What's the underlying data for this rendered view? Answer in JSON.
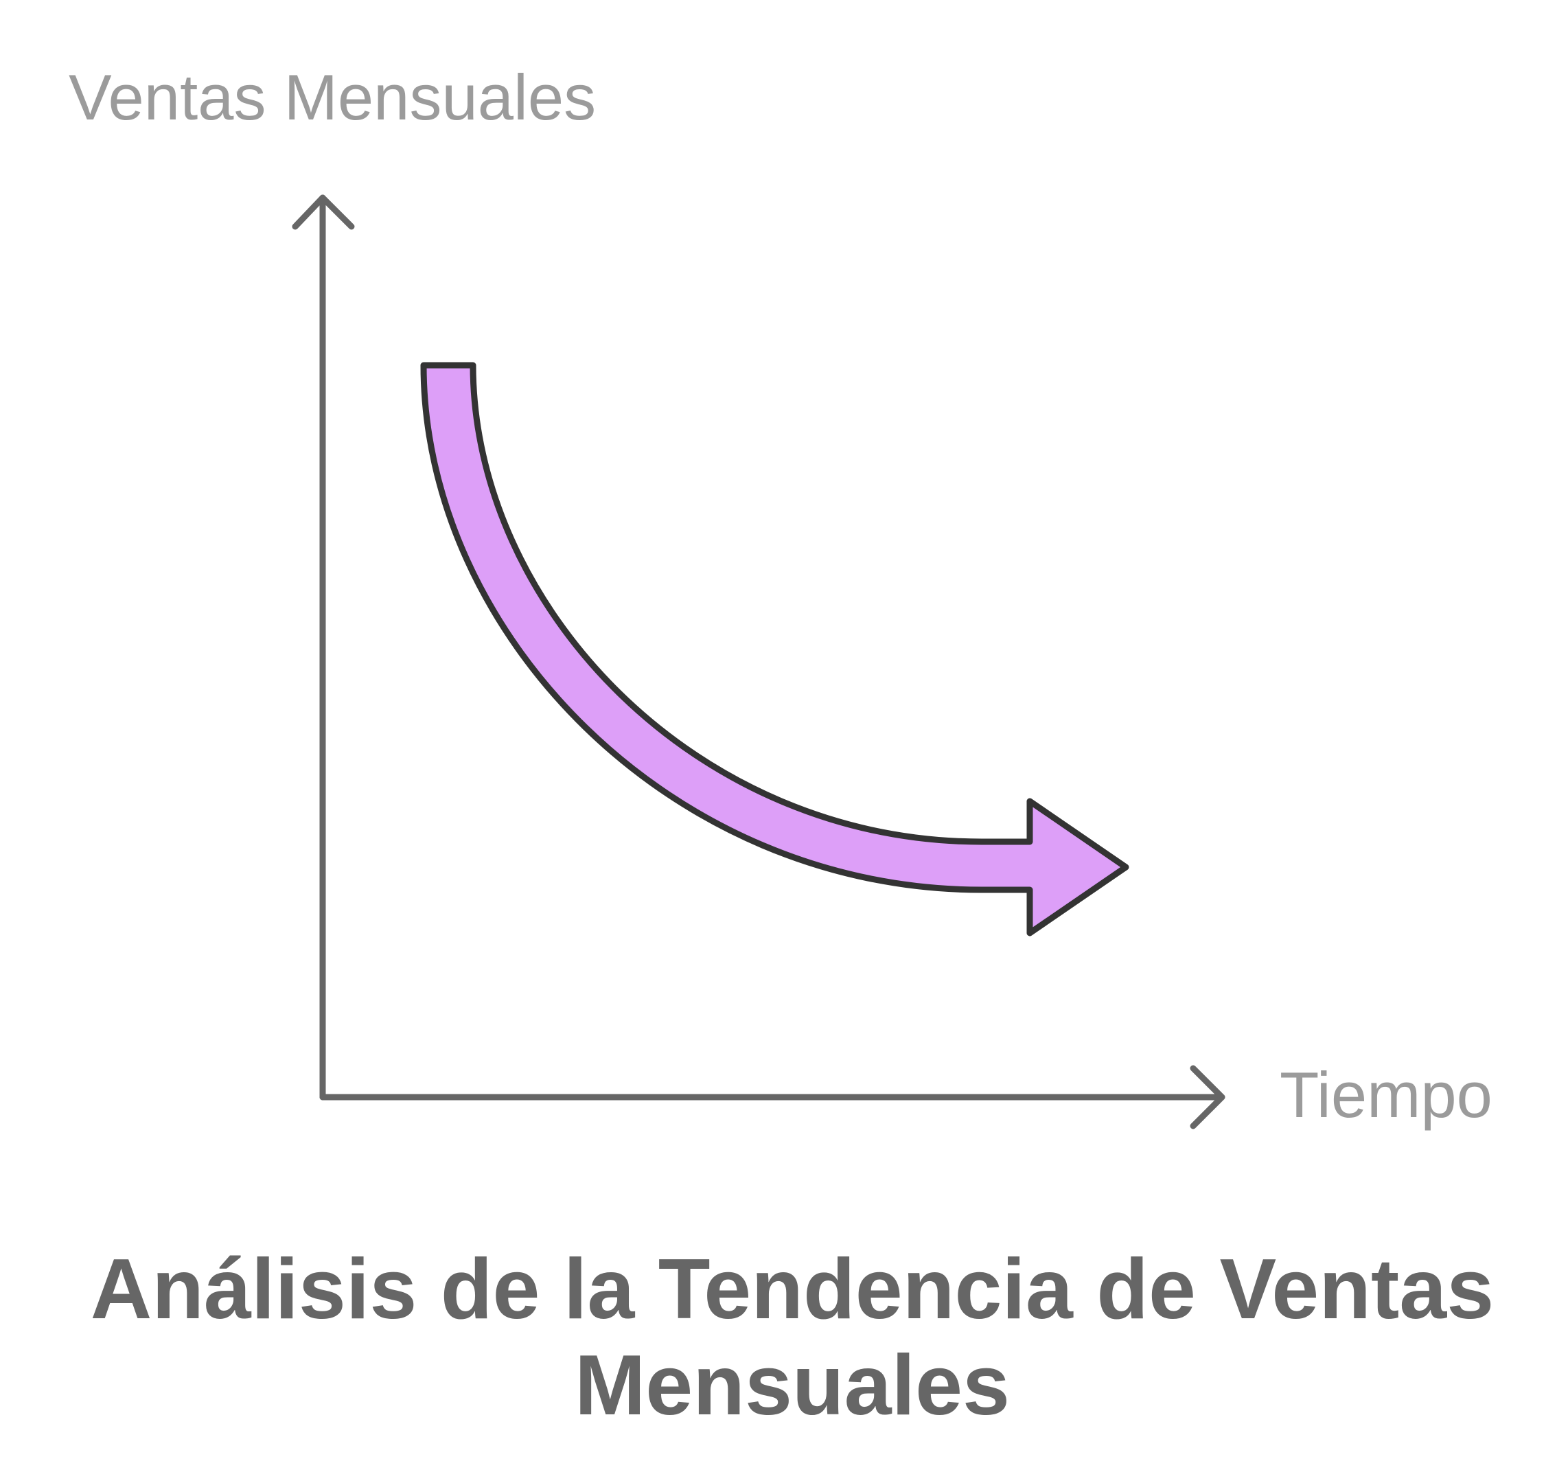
{
  "diagram": {
    "y_axis_label": "Ventas Mensuales",
    "x_axis_label": "Tiempo",
    "trend": "decreasing",
    "arrow_fill": "#dd9ff8",
    "arrow_stroke": "#333333",
    "axis_color": "#666666",
    "label_color": "#9b9b9b"
  },
  "title": {
    "line1": "Análisis de la Tendencia de Ventas",
    "line2": "Mensuales"
  }
}
